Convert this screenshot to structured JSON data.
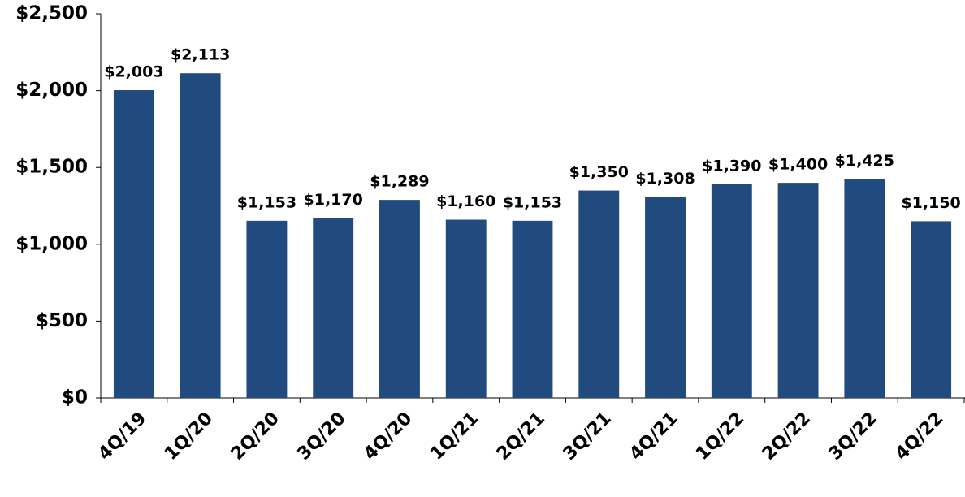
{
  "chart_data": {
    "type": "bar",
    "categories": [
      "4Q/19",
      "1Q/20",
      "2Q/20",
      "3Q/20",
      "4Q/20",
      "1Q/21",
      "2Q/21",
      "3Q/21",
      "4Q/21",
      "1Q/22",
      "2Q/22",
      "3Q/22",
      "4Q/22"
    ],
    "values": [
      2003,
      2113,
      1153,
      1170,
      1289,
      1160,
      1153,
      1350,
      1308,
      1390,
      1400,
      1425,
      1150
    ],
    "value_labels": [
      "$2,003",
      "$2,113",
      "$1,153",
      "$1,170",
      "$1,289",
      "$1,160",
      "$1,153",
      "$1,350",
      "$1,308",
      "$1,390",
      "$1,400",
      "$1,425",
      "$1,150"
    ],
    "color": "#214a7e",
    "ylim": [
      0,
      2500
    ],
    "yticks": [
      {
        "value": 0,
        "label": "$0"
      },
      {
        "value": 500,
        "label": "$500"
      },
      {
        "value": 1000,
        "label": "$1,000"
      },
      {
        "value": 1500,
        "label": "$1,500"
      },
      {
        "value": 2000,
        "label": "$2,000"
      },
      {
        "value": 2500,
        "label": "$2,500"
      }
    ],
    "grid": false
  }
}
